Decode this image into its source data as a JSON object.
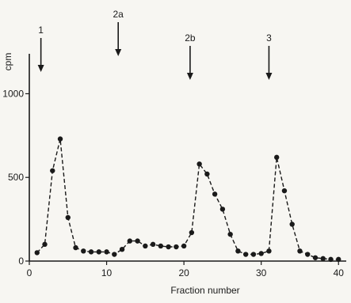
{
  "chart_data": {
    "type": "line",
    "xlabel": "Fraction number",
    "ylabel": "cpm",
    "xlim": [
      0,
      41
    ],
    "ylim": [
      0,
      1300
    ],
    "x_ticks": [
      0,
      10,
      20,
      30,
      40
    ],
    "y_ticks": [
      0,
      500,
      1000
    ],
    "grid": false,
    "line_style": "dashed",
    "marker": "filled-circle",
    "colors": {
      "line": "#1a1a1a",
      "marker": "#1a1a1a",
      "axis": "#1a1a1a",
      "background": "#f7f6f2"
    },
    "annotations": [
      {
        "label": "1",
        "x": 1.5
      },
      {
        "label": "2a",
        "x": 11.5
      },
      {
        "label": "2b",
        "x": 20.8
      },
      {
        "label": "3",
        "x": 31.0
      }
    ],
    "series": [
      {
        "x": [
          1,
          2,
          3,
          4,
          5,
          6,
          7,
          8,
          9,
          10,
          11,
          12,
          13,
          14,
          15,
          16,
          17,
          18,
          19,
          20,
          21,
          22,
          23,
          24,
          25,
          26,
          27,
          28,
          29,
          30,
          31,
          32,
          33,
          34,
          35,
          36,
          37,
          38,
          39,
          40
        ],
        "values": [
          50,
          100,
          540,
          730,
          260,
          80,
          60,
          55,
          55,
          55,
          40,
          70,
          120,
          120,
          90,
          100,
          90,
          85,
          85,
          90,
          170,
          580,
          520,
          400,
          310,
          160,
          60,
          40,
          40,
          45,
          60,
          620,
          420,
          220,
          60,
          40,
          20,
          15,
          10,
          10
        ]
      }
    ]
  }
}
